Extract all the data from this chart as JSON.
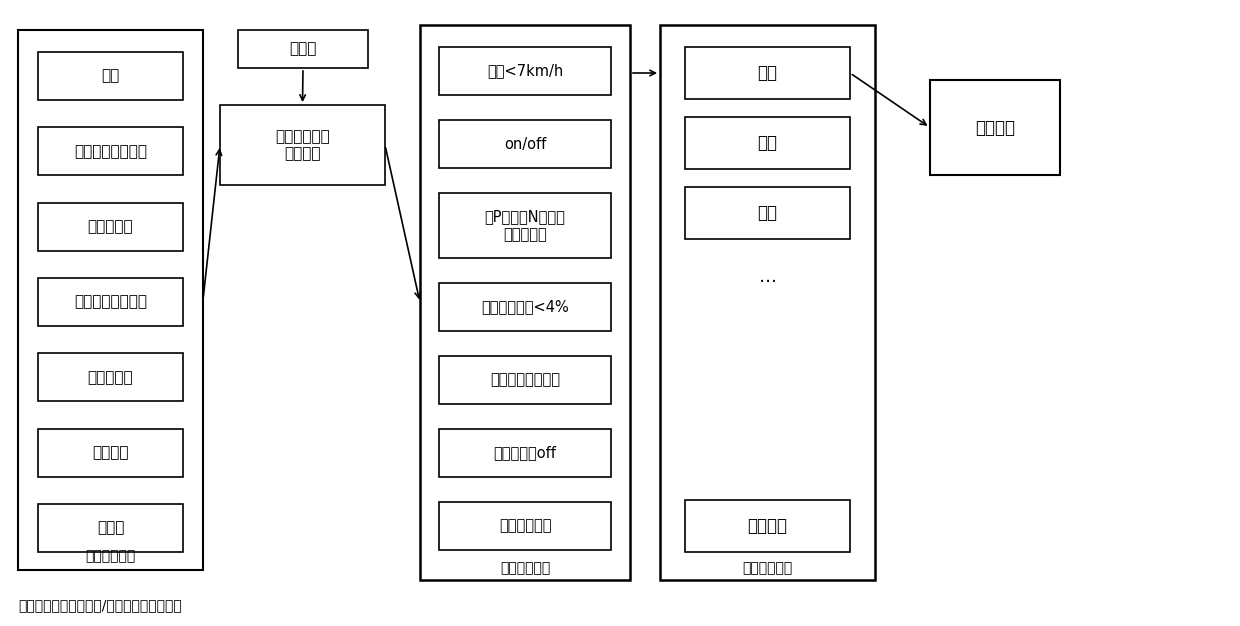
{
  "bg_color": "#ffffff",
  "border_color": "#000000",
  "text_color": "#000000",
  "block1_items": [
    "车速",
    "制动踏板开关信号",
    "换挡杆位置",
    "油门踏板开度信号",
    "发动机转速",
    "车门信号",
    "故障码"
  ],
  "block1_label": "信号采集模块",
  "init_box_text": "初始化",
  "intent_box_text": "整车驾驶意图\n识别模块",
  "block3_items": [
    "车速<7km/h",
    "on/off",
    "除P挡或者N挡以外\n的驾驶挡位",
    "油门踏板开度<4%",
    "发动机转速：怠速",
    "车门信号：off",
    "故障码：筛选"
  ],
  "block3_label": "蠕动识别模块",
  "block4_items": [
    "蠕动",
    "起步",
    "滑磨"
  ],
  "block4_dots": "...",
  "block4_bottom": "跛行回家",
  "block4_label": "整车工况模式",
  "final_box_text": "蠕动控制",
  "bottom_label": "整车驾驶模式选择模块/驾驶员意图识别模块"
}
